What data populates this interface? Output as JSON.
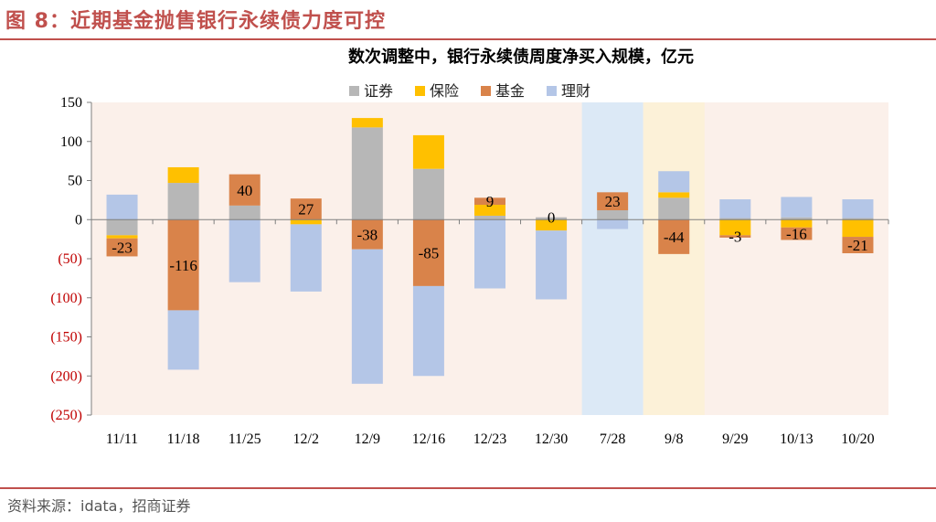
{
  "figure": {
    "title": "图 8：近期基金抛售银行永续债力度可控",
    "source": "资料来源：idata，招商证券"
  },
  "colors": {
    "brand": "#c0504d",
    "plot_background": "#fbf0ea",
    "highlight_blue": "#dce9f6",
    "highlight_yellow": "#fcf1d8",
    "negative_tick": "#c00000"
  },
  "chart_data": {
    "type": "bar",
    "stacked": true,
    "title": "数次调整中，银行永续债周度净买入规模，亿元",
    "xlabel": "",
    "ylabel": "",
    "ylim": [
      -250,
      150
    ],
    "yticks": [
      150,
      100,
      50,
      0,
      -50,
      -100,
      -150,
      -200,
      -250
    ],
    "ytick_labels": [
      "150",
      "100",
      "50",
      "0",
      "(50)",
      "(100)",
      "(150)",
      "(200)",
      "(250)"
    ],
    "grid": false,
    "legend_position": "top-center",
    "categories": [
      "11/11",
      "11/18",
      "11/25",
      "12/2",
      "12/9",
      "12/16",
      "12/23",
      "12/30",
      "7/28",
      "9/8",
      "9/29",
      "10/13",
      "10/20"
    ],
    "highlights": [
      {
        "category": "7/28",
        "color": "#dce9f6"
      },
      {
        "category": "9/8",
        "color": "#fcf1d8"
      }
    ],
    "series": [
      {
        "name": "证券",
        "color": "#b7b7b7",
        "values": [
          -20,
          47,
          18,
          0,
          118,
          65,
          5,
          3,
          12,
          28,
          2,
          3,
          2
        ]
      },
      {
        "name": "保险",
        "color": "#ffc000",
        "values": [
          -4,
          20,
          0,
          -6,
          12,
          43,
          14,
          -14,
          0,
          7,
          -20,
          -10,
          -22
        ]
      },
      {
        "name": "基金",
        "color": "#d9834a",
        "values": [
          -23,
          -116,
          40,
          27,
          -38,
          -85,
          9,
          0,
          23,
          -44,
          -3,
          -16,
          -21
        ]
      },
      {
        "name": "理财",
        "color": "#b4c6e7",
        "values": [
          32,
          -76,
          -80,
          -86,
          -172,
          -115,
          -88,
          -88,
          -12,
          27,
          24,
          26,
          24
        ]
      }
    ],
    "data_labels": [
      "-23",
      "-116",
      "40",
      "27",
      "-38",
      "-85",
      "9",
      "0",
      "23",
      "-44",
      "-3",
      "-16",
      "-21"
    ]
  }
}
